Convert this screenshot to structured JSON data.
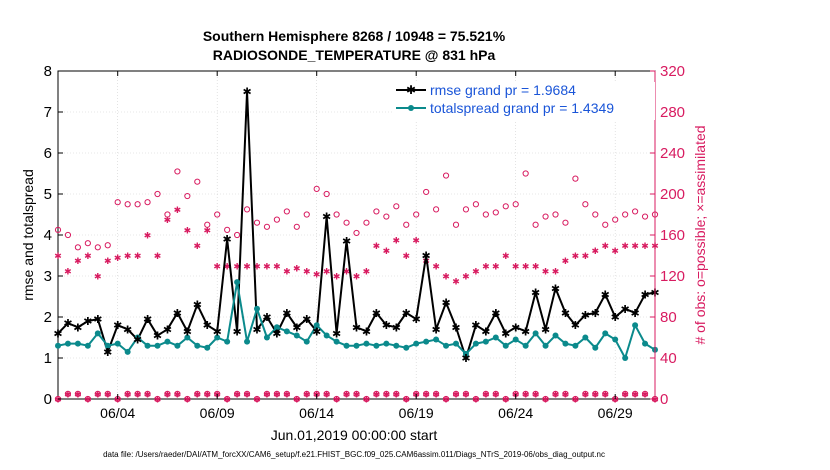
{
  "chart_data": {
    "type": "line",
    "title": "Southern Hemisphere 8268 / 10948 = 75.521%",
    "subtitle": "RADIOSONDE_TEMPERATURE @ 831 hPa",
    "xlabel": "Jun.01,2019 00:00:00 start",
    "ylabel": "rmse and totalspread",
    "ylabel_right": "# of obs: o=possible; ×=assimilated",
    "footer": "data file: /Users/raeder/DAI/ATM_forcXX/CAM6_setup/f.e21.FHIST_BGC.f09_025.CAM6assim.011/Diags_NTrS_2019-06/obs_diag_output.nc",
    "xlim": [
      1,
      31
    ],
    "ylim": [
      0,
      8
    ],
    "ylim_right": [
      0,
      320
    ],
    "x_ticks": [
      4,
      9,
      14,
      19,
      24,
      29
    ],
    "x_tick_labels": [
      "06/04",
      "06/09",
      "06/14",
      "06/19",
      "06/24",
      "06/29"
    ],
    "y_ticks": [
      0,
      1,
      2,
      3,
      4,
      5,
      6,
      7,
      8
    ],
    "y_tick_labels": [
      "0",
      "1",
      "2",
      "3",
      "4",
      "5",
      "6",
      "7",
      "8"
    ],
    "y_right_ticks": [
      0,
      40,
      80,
      120,
      160,
      200,
      240,
      280,
      320
    ],
    "y_right_tick_labels": [
      "0",
      "40",
      "80",
      "120",
      "160",
      "200",
      "240",
      "280",
      "320"
    ],
    "legend_position": "top-right",
    "colors": {
      "rmse": "#000000",
      "spread": "#0b8a8c",
      "obs": "#d81b60",
      "right_axis": "#d81b60"
    },
    "x": [
      1.0,
      1.5,
      2.0,
      2.5,
      3.0,
      3.5,
      4.0,
      4.5,
      5.0,
      5.5,
      6.0,
      6.5,
      7.0,
      7.5,
      8.0,
      8.5,
      9.0,
      9.5,
      10.0,
      10.5,
      11.0,
      11.5,
      12.0,
      12.5,
      13.0,
      13.5,
      14.0,
      14.5,
      15.0,
      15.5,
      16.0,
      16.5,
      17.0,
      17.5,
      18.0,
      18.5,
      19.0,
      19.5,
      20.0,
      20.5,
      21.0,
      21.5,
      22.0,
      22.5,
      23.0,
      23.5,
      24.0,
      24.5,
      25.0,
      25.5,
      26.0,
      26.5,
      27.0,
      27.5,
      28.0,
      28.5,
      29.0,
      29.5,
      30.0,
      30.5,
      31.0
    ],
    "series": [
      {
        "name": "rmse grand pr = 1.9684",
        "values": [
          1.6,
          1.85,
          1.75,
          1.9,
          1.95,
          1.15,
          1.8,
          1.7,
          1.45,
          1.95,
          1.55,
          1.7,
          2.1,
          1.65,
          2.3,
          1.8,
          1.65,
          3.9,
          1.65,
          7.5,
          1.7,
          2.0,
          1.6,
          2.1,
          1.75,
          1.95,
          1.65,
          4.45,
          1.6,
          3.85,
          1.75,
          1.65,
          2.1,
          1.8,
          1.75,
          2.1,
          1.95,
          3.5,
          1.7,
          2.35,
          1.75,
          1.0,
          1.8,
          1.65,
          2.1,
          1.6,
          1.75,
          1.65,
          2.6,
          1.7,
          2.7,
          2.1,
          1.8,
          2.05,
          2.1,
          2.55,
          2.0,
          2.2,
          2.1,
          2.55,
          2.6
        ],
        "label_text": "rmse grand pr = 1.9684"
      },
      {
        "name": "totalspread grand pr = 1.4349",
        "values": [
          1.3,
          1.35,
          1.35,
          1.3,
          1.6,
          1.3,
          1.35,
          1.15,
          1.5,
          1.3,
          1.3,
          1.4,
          1.3,
          1.5,
          1.3,
          1.25,
          1.5,
          1.4,
          2.85,
          1.4,
          2.2,
          1.5,
          1.75,
          1.65,
          1.55,
          1.4,
          1.8,
          1.55,
          1.4,
          1.3,
          1.3,
          1.35,
          1.3,
          1.35,
          1.3,
          1.25,
          1.35,
          1.4,
          1.45,
          1.3,
          1.35,
          1.1,
          1.35,
          1.4,
          1.5,
          1.3,
          1.45,
          1.3,
          1.6,
          1.3,
          1.55,
          1.35,
          1.3,
          1.5,
          1.25,
          1.6,
          1.45,
          1.0,
          1.8,
          1.35,
          1.2
        ],
        "label_text": "totalspread grand pr = 1.4349"
      }
    ],
    "obs_possible": [
      165,
      160,
      148,
      152,
      148,
      150,
      192,
      190,
      190,
      192,
      200,
      180,
      222,
      198,
      212,
      170,
      180,
      165,
      160,
      185,
      172,
      168,
      175,
      183,
      168,
      180,
      205,
      200,
      180,
      172,
      162,
      172,
      183,
      178,
      188,
      170,
      180,
      202,
      185,
      218,
      170,
      185,
      190,
      180,
      182,
      188,
      190,
      220,
      170,
      178,
      180,
      172,
      215,
      190,
      180,
      170,
      175,
      180,
      183,
      178,
      180
    ],
    "obs_assimilated": [
      140,
      125,
      135,
      140,
      120,
      135,
      138,
      140,
      140,
      160,
      140,
      175,
      185,
      165,
      150,
      165,
      130,
      130,
      130,
      130,
      130,
      130,
      130,
      125,
      128,
      125,
      122,
      125,
      120,
      125,
      120,
      125,
      150,
      145,
      155,
      140,
      155,
      135,
      130,
      120,
      115,
      120,
      125,
      130,
      130,
      140,
      130,
      130,
      130,
      125,
      125,
      135,
      140,
      140,
      145,
      150,
      145,
      150,
      150,
      150,
      150
    ],
    "obs_bottom_possible": [
      0,
      5,
      5,
      0,
      5,
      5,
      0,
      5,
      5,
      5,
      0,
      5,
      5,
      0,
      5,
      5,
      5,
      0,
      5,
      5,
      0,
      5,
      5,
      5,
      0,
      5,
      5,
      5,
      0,
      5,
      5,
      0,
      5,
      5,
      5,
      0,
      5,
      5,
      5,
      0,
      5,
      5,
      0,
      5,
      5,
      0,
      5,
      5,
      5,
      0,
      5,
      5,
      0,
      5,
      5,
      5,
      0,
      5,
      5,
      5,
      0
    ],
    "obs_bottom_assimilated": [
      0,
      5,
      5,
      0,
      5,
      5,
      0,
      5,
      5,
      5,
      0,
      5,
      5,
      0,
      5,
      5,
      5,
      0,
      5,
      5,
      0,
      5,
      5,
      5,
      0,
      5,
      5,
      5,
      0,
      5,
      5,
      0,
      5,
      5,
      5,
      0,
      5,
      5,
      5,
      0,
      5,
      5,
      0,
      5,
      5,
      0,
      5,
      5,
      5,
      0,
      5,
      5,
      0,
      5,
      5,
      5,
      0,
      5,
      5,
      5,
      0
    ]
  }
}
